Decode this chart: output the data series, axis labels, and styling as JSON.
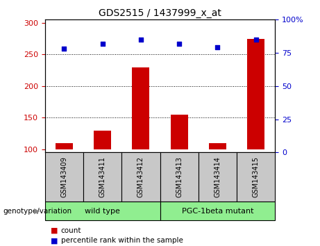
{
  "title": "GDS2515 / 1437999_x_at",
  "samples": [
    "GSM143409",
    "GSM143411",
    "GSM143412",
    "GSM143413",
    "GSM143414",
    "GSM143415"
  ],
  "counts": [
    110,
    130,
    230,
    155,
    110,
    275
  ],
  "percentiles": [
    78,
    82,
    85,
    82,
    79,
    85
  ],
  "ylim_left": [
    95,
    305
  ],
  "ylim_right": [
    0,
    100
  ],
  "left_yticks": [
    100,
    150,
    200,
    250,
    300
  ],
  "right_yticks": [
    0,
    25,
    50,
    75,
    100
  ],
  "right_yticklabels": [
    "0",
    "25",
    "50",
    "75",
    "100%"
  ],
  "bar_color": "#cc0000",
  "dot_color": "#0000cc",
  "group_label_prefix": "genotype/variation",
  "legend_count_label": "count",
  "legend_percentile_label": "percentile rank within the sample",
  "label_area_color": "#c8c8c8",
  "group_area_color": "#90ee90",
  "group_spans": [
    [
      -0.5,
      2.5,
      "wild type"
    ],
    [
      2.5,
      5.5,
      "PGC-1beta mutant"
    ]
  ]
}
